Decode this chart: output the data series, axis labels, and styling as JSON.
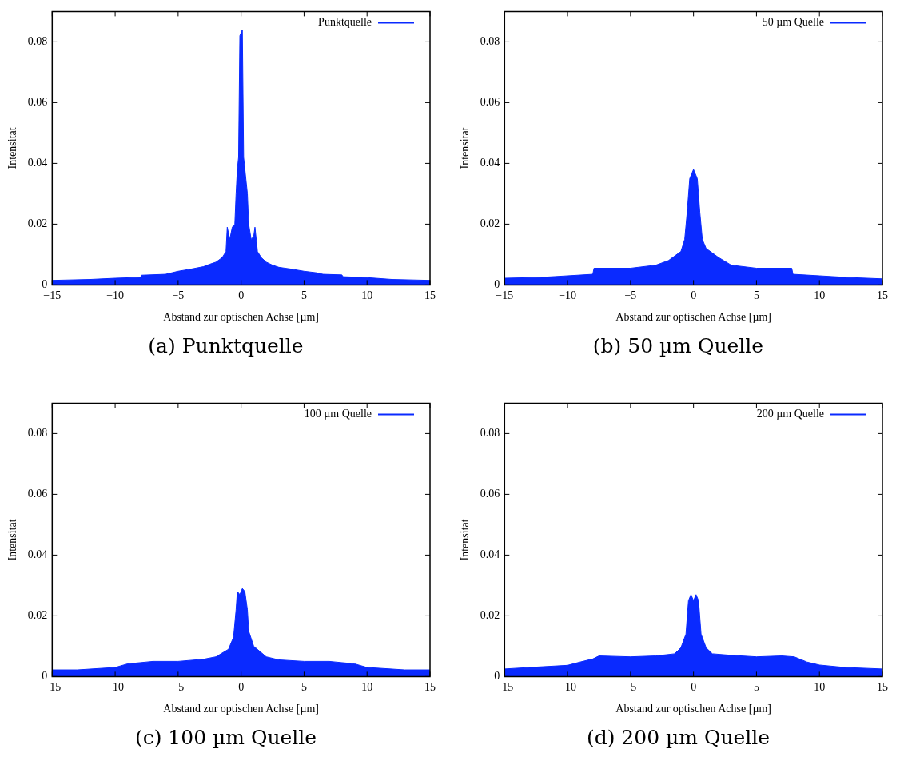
{
  "chart_data": [
    {
      "type": "area",
      "xlabel": "Abstand zur optischen Achse [µm]",
      "ylabel": "Intensitat",
      "legend": "top right",
      "annotations": [
        "(a) Punktquelle"
      ],
      "xlim": [
        -15,
        15
      ],
      "xticks": [
        {
          "value": -15,
          "label": "−15"
        },
        {
          "value": -10,
          "label": "−10"
        },
        {
          "value": -5,
          "label": "−5"
        },
        0,
        5,
        10,
        15
      ],
      "ylim": [
        0,
        0.09
      ],
      "yticks": [
        0,
        0.02,
        0.04,
        0.06,
        0.08
      ],
      "series": [
        {
          "name": "Punktquelle",
          "color": "#0a2aff",
          "x": [
            -15,
            -12,
            -10,
            -8,
            -7.9,
            -6,
            -5,
            -4,
            -3,
            -2.5,
            -2,
            -1.5,
            -1.2,
            -1.1,
            -0.9,
            -0.7,
            -0.5,
            -0.4,
            -0.3,
            -0.2,
            -0.1,
            0,
            0.1,
            0.2,
            0.3,
            0.5,
            0.6,
            0.8,
            1,
            1.1,
            1.3,
            1.6,
            2,
            2.5,
            3,
            4,
            5,
            6,
            6.5,
            8,
            8.1,
            10,
            12,
            15
          ],
          "values": [
            0.0015,
            0.0018,
            0.0022,
            0.0025,
            0.0032,
            0.0035,
            0.0045,
            0.0052,
            0.006,
            0.0068,
            0.0075,
            0.009,
            0.011,
            0.019,
            0.015,
            0.019,
            0.02,
            0.03,
            0.038,
            0.042,
            0.082,
            0.083,
            0.084,
            0.042,
            0.038,
            0.03,
            0.02,
            0.015,
            0.016,
            0.019,
            0.011,
            0.009,
            0.0075,
            0.0065,
            0.0058,
            0.0052,
            0.0045,
            0.004,
            0.0035,
            0.0033,
            0.0027,
            0.0024,
            0.0018,
            0.0015
          ]
        }
      ]
    },
    {
      "type": "area",
      "xlabel": "Abstand zur optischen Achse [µm]",
      "ylabel": "Intensitat",
      "legend": "top right",
      "annotations": [
        "(b) 50 µm Quelle"
      ],
      "xlim": [
        -15,
        15
      ],
      "xticks": [
        {
          "value": -15,
          "label": "−15"
        },
        {
          "value": -10,
          "label": "−10"
        },
        {
          "value": -5,
          "label": "−5"
        },
        0,
        5,
        10,
        15
      ],
      "ylim": [
        0,
        0.09
      ],
      "yticks": [
        0,
        0.02,
        0.04,
        0.06,
        0.08
      ],
      "series": [
        {
          "name": "50 µm Quelle",
          "color": "#0a2aff",
          "x": [
            -15,
            -12,
            -10,
            -8,
            -7.9,
            -5,
            -3,
            -2,
            -1,
            -0.7,
            -0.5,
            -0.3,
            0,
            0.3,
            0.5,
            0.7,
            1,
            2,
            3,
            5,
            7.8,
            7.9,
            10,
            12,
            15
          ],
          "values": [
            0.0022,
            0.0025,
            0.003,
            0.0035,
            0.0055,
            0.0055,
            0.0065,
            0.008,
            0.011,
            0.015,
            0.024,
            0.035,
            0.038,
            0.035,
            0.024,
            0.015,
            0.012,
            0.009,
            0.0065,
            0.0055,
            0.0055,
            0.0035,
            0.003,
            0.0025,
            0.002
          ]
        }
      ]
    },
    {
      "type": "area",
      "xlabel": "Abstand zur optischen Achse [µm]",
      "ylabel": "Intensitat",
      "legend": "top right",
      "annotations": [
        "(c) 100 µm Quelle"
      ],
      "xlim": [
        -15,
        15
      ],
      "xticks": [
        {
          "value": -15,
          "label": "−15"
        },
        {
          "value": -10,
          "label": "−10"
        },
        {
          "value": -5,
          "label": "−5"
        },
        0,
        5,
        10,
        15
      ],
      "ylim": [
        0,
        0.09
      ],
      "yticks": [
        0,
        0.02,
        0.04,
        0.06,
        0.08
      ],
      "series": [
        {
          "name": "100 µm Quelle",
          "color": "#0a2aff",
          "x": [
            -15,
            -13,
            -10,
            -9,
            -7,
            -5,
            -3,
            -2,
            -1,
            -0.6,
            -0.4,
            -0.3,
            -0.1,
            0.1,
            0.3,
            0.5,
            0.6,
            1,
            2,
            3,
            5,
            7,
            9,
            10,
            13,
            15
          ],
          "values": [
            0.0022,
            0.0022,
            0.003,
            0.0042,
            0.005,
            0.005,
            0.0057,
            0.0065,
            0.009,
            0.013,
            0.022,
            0.028,
            0.027,
            0.029,
            0.028,
            0.022,
            0.015,
            0.01,
            0.0065,
            0.0055,
            0.005,
            0.005,
            0.0042,
            0.003,
            0.0022,
            0.0022
          ]
        }
      ]
    },
    {
      "type": "area",
      "xlabel": "Abstand zur optischen Achse [µm]",
      "ylabel": "Intensitat",
      "legend": "top right",
      "annotations": [
        "(d) 200 µm Quelle"
      ],
      "xlim": [
        -15,
        15
      ],
      "xticks": [
        {
          "value": -15,
          "label": "−15"
        },
        {
          "value": -10,
          "label": "−10"
        },
        {
          "value": -5,
          "label": "−5"
        },
        0,
        5,
        10,
        15
      ],
      "ylim": [
        0,
        0.09
      ],
      "yticks": [
        0,
        0.02,
        0.04,
        0.06,
        0.08
      ],
      "series": [
        {
          "name": "200 µm Quelle",
          "color": "#0a2aff",
          "x": [
            -15,
            -13,
            -10,
            -9,
            -8,
            -7.5,
            -5,
            -3,
            -1.5,
            -1,
            -0.6,
            -0.4,
            -0.2,
            0,
            0.2,
            0.4,
            0.6,
            1,
            1.5,
            3,
            5,
            7,
            8,
            9,
            10,
            12,
            15
          ],
          "values": [
            0.0025,
            0.003,
            0.0037,
            0.0048,
            0.0058,
            0.0068,
            0.0065,
            0.0068,
            0.0075,
            0.0095,
            0.014,
            0.025,
            0.027,
            0.025,
            0.027,
            0.025,
            0.014,
            0.0095,
            0.0075,
            0.007,
            0.0065,
            0.0068,
            0.0065,
            0.0048,
            0.0038,
            0.003,
            0.0025
          ]
        }
      ]
    }
  ]
}
